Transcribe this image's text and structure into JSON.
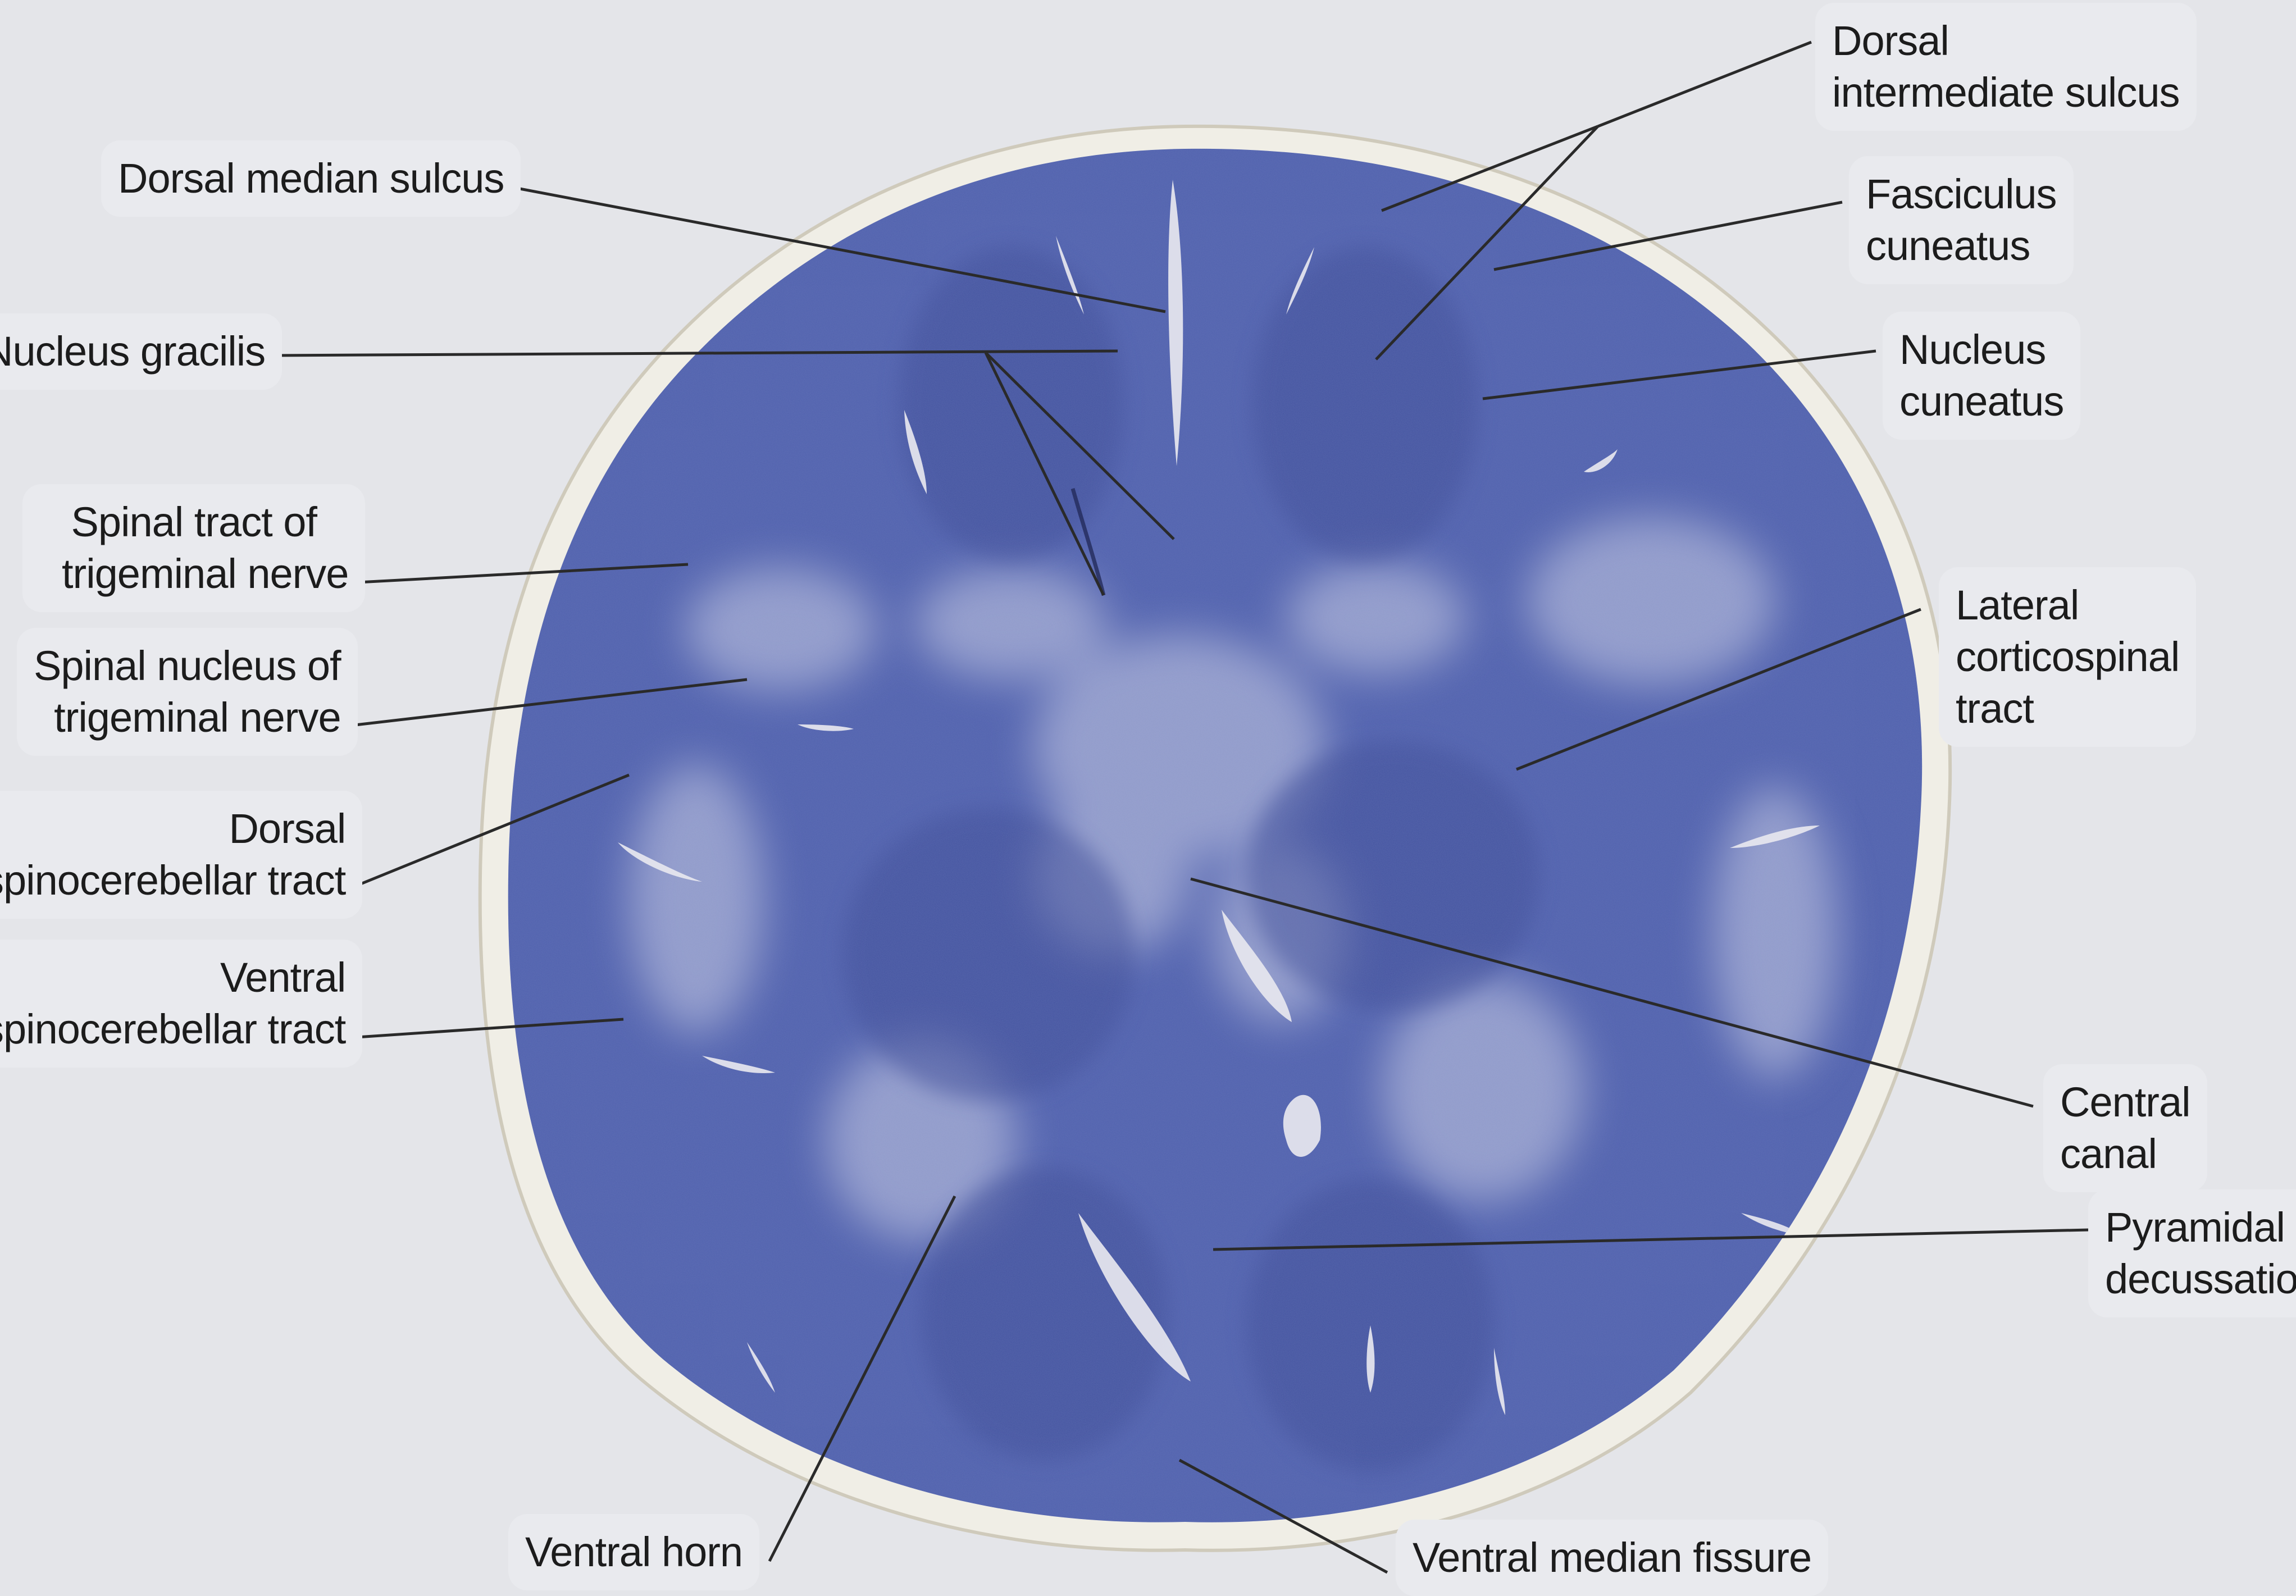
{
  "labels": {
    "dorsal_median_sulcus": [
      "Dorsal median sulcus"
    ],
    "nucleus_gracilis": [
      "Nucleus gracilis"
    ],
    "spinal_tract_trigeminal": [
      "Spinal tract of",
      "trigeminal nerve"
    ],
    "spinal_nucleus_trigeminal": [
      "Spinal nucleus of",
      "trigeminal nerve"
    ],
    "dorsal_spinocerebellar": [
      "Dorsal",
      "spinocerebellar tract"
    ],
    "ventral_spinocerebellar": [
      "Ventral",
      "spinocerebellar tract"
    ],
    "ventral_horn": [
      "Ventral horn"
    ],
    "dorsal_intermediate_sulcus": [
      "Dorsal",
      "intermediate sulcus"
    ],
    "fasciculus_cuneatus": [
      "Fasciculus",
      "cuneatus"
    ],
    "nucleus_cuneatus": [
      "Nucleus",
      "cuneatus"
    ],
    "lateral_corticospinal": [
      "Lateral",
      "corticospinal",
      "tract"
    ],
    "central_canal": [
      "Central",
      "canal"
    ],
    "pyramidal_decussation": [
      "Pyramidal",
      "decussation"
    ],
    "ventral_median_fissure": [
      "Ventral median fissure"
    ]
  },
  "colors": {
    "tissue": "#4e5fad",
    "tissue_dark": "#3a4892",
    "white_matter_pale": "#9ea6cf",
    "membrane": "#f1efe6",
    "leader_line": "#2a2a2a",
    "background": "#e4e5e9"
  }
}
